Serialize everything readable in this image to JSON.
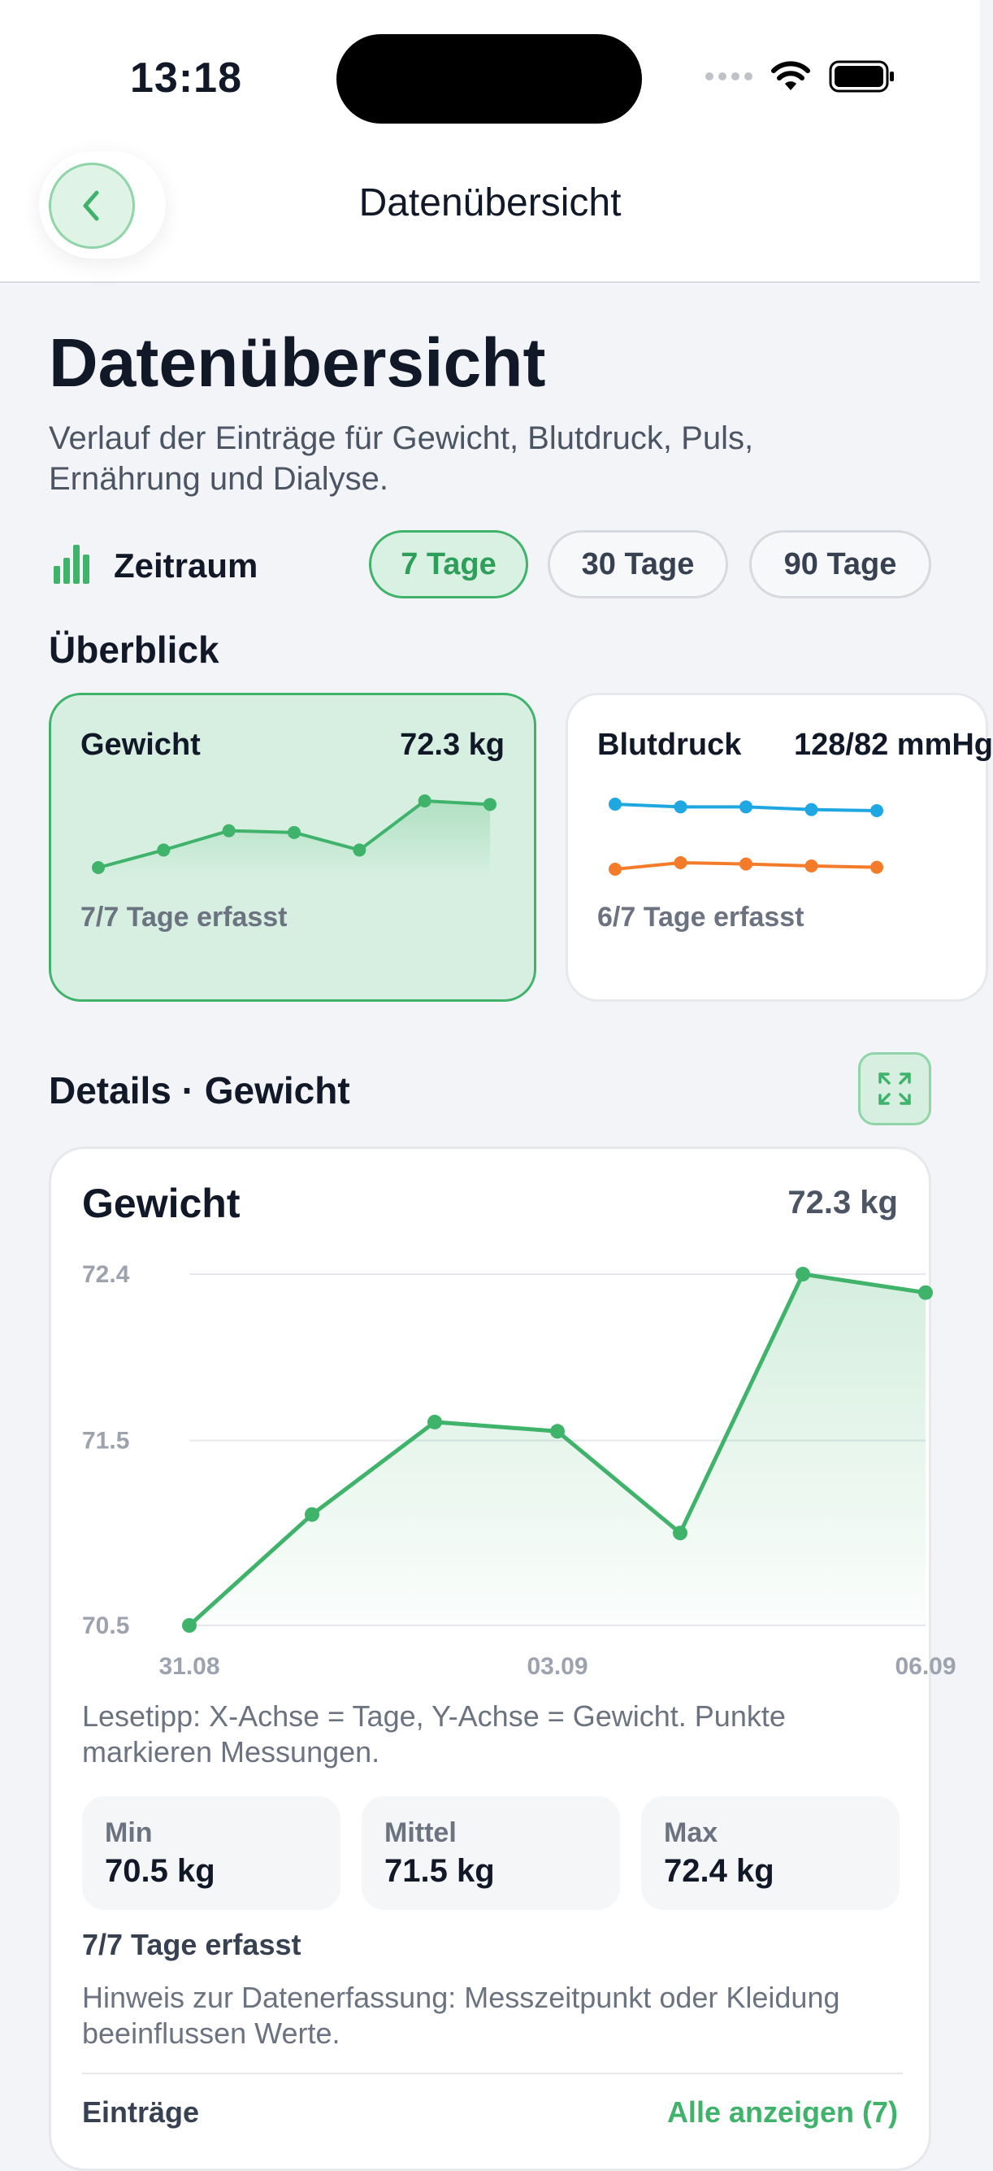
{
  "status_bar": {
    "time": "13:18",
    "wifi_icon": "wifi-icon",
    "battery_icon": "battery-icon"
  },
  "nav": {
    "title": "Datenübersicht",
    "back_icon": "chevron-left-icon"
  },
  "header": {
    "title": "Datenübersicht",
    "subtitle": "Verlauf der Einträge für Gewicht, Blutdruck, Puls, Ernährung und Dialyse."
  },
  "range": {
    "label": "Zeitraum",
    "icon": "bar-chart-icon",
    "options": [
      "7 Tage",
      "30 Tage",
      "90 Tage"
    ],
    "selected": "7 Tage"
  },
  "overview": {
    "title": "Überblick",
    "cards": [
      {
        "name": "Gewicht",
        "value": "72.3 kg",
        "coverage": "7/7 Tage erfasst",
        "selected": true,
        "spark": [
          70.5,
          71.0,
          71.55,
          71.5,
          71.0,
          72.4,
          72.3
        ]
      },
      {
        "name": "Blutdruck",
        "value": "128/82 mmHg",
        "coverage": "6/7 Tage erfasst",
        "selected": false,
        "systolic": [
          129,
          128.5,
          128.5,
          128,
          127.8
        ],
        "diastolic": [
          81.5,
          82.5,
          82.3,
          82.0,
          81.8
        ]
      }
    ]
  },
  "details": {
    "title": "Details · Gewicht",
    "expand_icon": "expand-icon",
    "card_title": "Gewicht",
    "card_value": "72.3 kg",
    "tip": "Lesetipp: X-Achse = Tage, Y-Achse = Gewicht. Punkte markieren Messungen.",
    "stats": [
      {
        "label": "Min",
        "value": "70.5 kg"
      },
      {
        "label": "Mittel",
        "value": "71.5 kg"
      },
      {
        "label": "Max",
        "value": "72.4 kg"
      }
    ],
    "coverage": "7/7 Tage erfasst",
    "note": "Hinweis zur Datenerfassung: Messzeitpunkt oder Kleidung beeinflussen Werte.",
    "entries_label": "Einträge",
    "entries_link": "Alle anzeigen (7)"
  },
  "chart_data": {
    "type": "line",
    "title": "Gewicht",
    "x": [
      "31.08",
      "01.09",
      "02.09",
      "03.09",
      "04.09",
      "05.09",
      "06.09"
    ],
    "x_tick_labels": [
      "31.08",
      "03.09",
      "06.09"
    ],
    "series": [
      {
        "values": [
          70.5,
          71.1,
          71.6,
          71.55,
          71.0,
          72.4,
          72.3
        ]
      }
    ],
    "y_ticks": [
      70.5,
      71.5,
      72.4
    ],
    "ylim": [
      70.5,
      72.4
    ],
    "grid": true,
    "color": "#3fb36a"
  },
  "colors": {
    "accent": "#3fb36a",
    "bp_systolic": "#1ea7e1",
    "bp_diastolic": "#f47b2a"
  }
}
